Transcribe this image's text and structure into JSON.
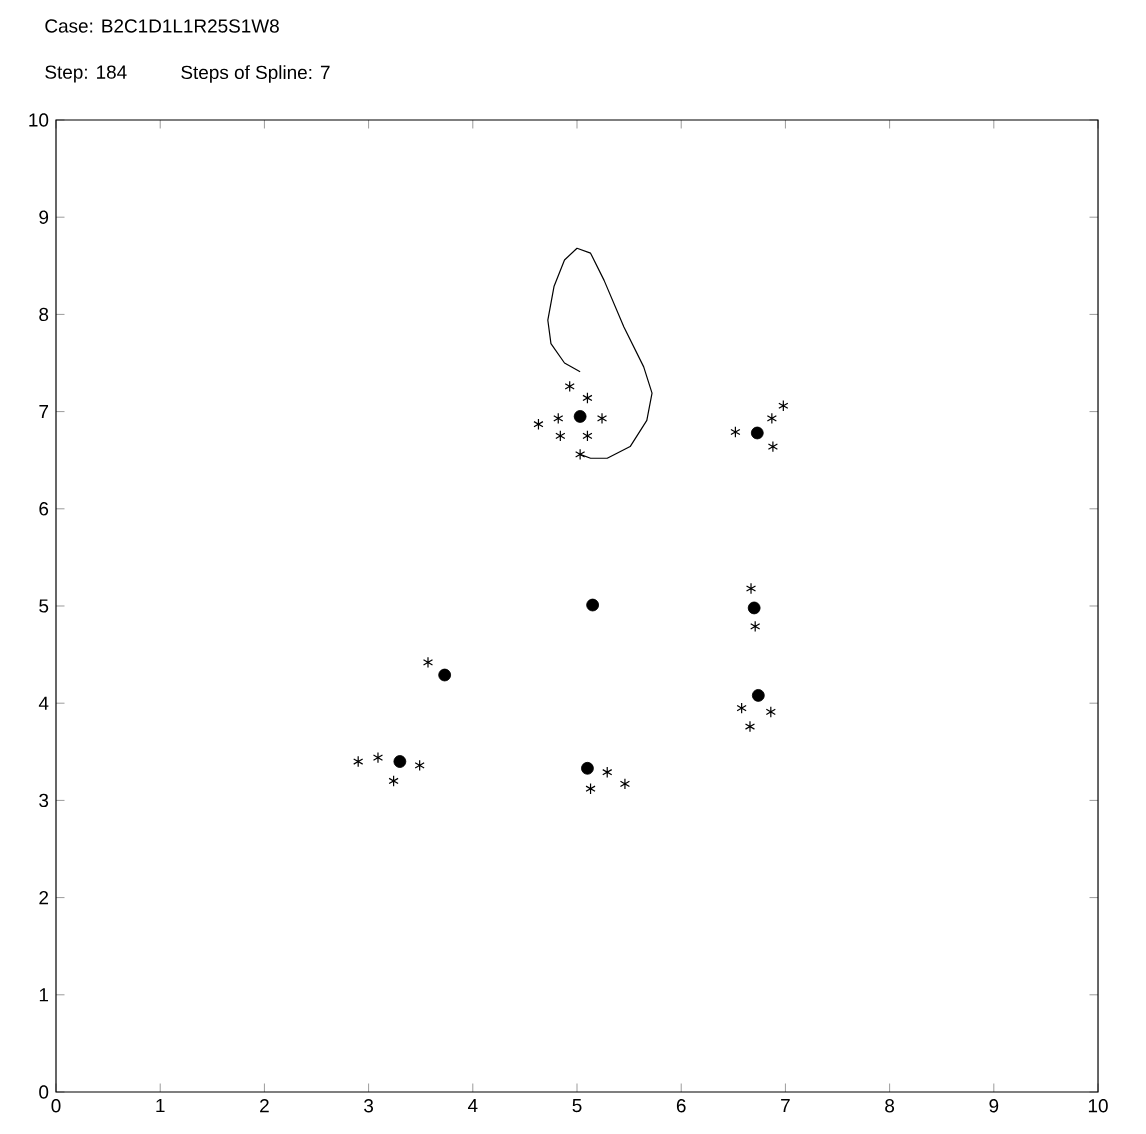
{
  "chart_data": {
    "type": "scatter",
    "title": "Case: B2C1D1L1R25S1W8",
    "subtitle": "Step: 184",
    "annotations": [
      "Steps of Spline: 7"
    ],
    "xlim": [
      0,
      10
    ],
    "ylim": [
      0,
      10
    ],
    "xticks": [
      0,
      1,
      2,
      3,
      4,
      5,
      6,
      7,
      8,
      9,
      10
    ],
    "yticks": [
      0,
      1,
      2,
      3,
      4,
      5,
      6,
      7,
      8,
      9,
      10
    ],
    "grid": false,
    "series": [
      {
        "type": "line",
        "color": "#000000",
        "marker": "none",
        "line_style": "solid",
        "x": [
          5.03,
          4.88,
          4.75,
          4.72,
          4.78,
          4.88,
          5.0,
          5.13,
          5.26,
          5.45,
          5.64,
          5.72,
          5.67,
          5.51,
          5.29,
          5.13,
          5.03
        ],
        "values": [
          7.41,
          7.5,
          7.7,
          7.94,
          8.29,
          8.56,
          8.68,
          8.63,
          8.35,
          7.87,
          7.46,
          7.19,
          6.91,
          6.64,
          6.52,
          6.52,
          6.56
        ]
      },
      {
        "color": "#000000",
        "marker": "cross",
        "x": [
          4.93,
          5.1,
          5.24,
          4.63,
          4.82,
          4.84,
          5.1,
          5.03,
          6.52,
          6.87,
          6.98,
          6.88,
          6.67,
          6.71,
          6.58,
          6.86,
          6.66,
          3.57,
          2.9,
          3.09,
          3.24,
          3.49,
          5.29,
          5.13,
          5.46
        ],
        "values": [
          7.26,
          7.14,
          6.93,
          6.87,
          6.93,
          6.75,
          6.75,
          6.56,
          6.79,
          6.93,
          7.06,
          6.64,
          5.18,
          4.79,
          3.95,
          3.91,
          3.76,
          4.42,
          3.4,
          3.44,
          3.2,
          3.36,
          3.29,
          3.12,
          3.17
        ]
      },
      {
        "color": "#000000",
        "marker": "circle",
        "x": [
          5.03,
          6.73,
          5.15,
          6.7,
          6.74,
          3.73,
          3.3,
          5.1
        ],
        "values": [
          6.95,
          6.78,
          5.01,
          4.98,
          4.08,
          4.29,
          3.4,
          3.33
        ]
      }
    ]
  }
}
